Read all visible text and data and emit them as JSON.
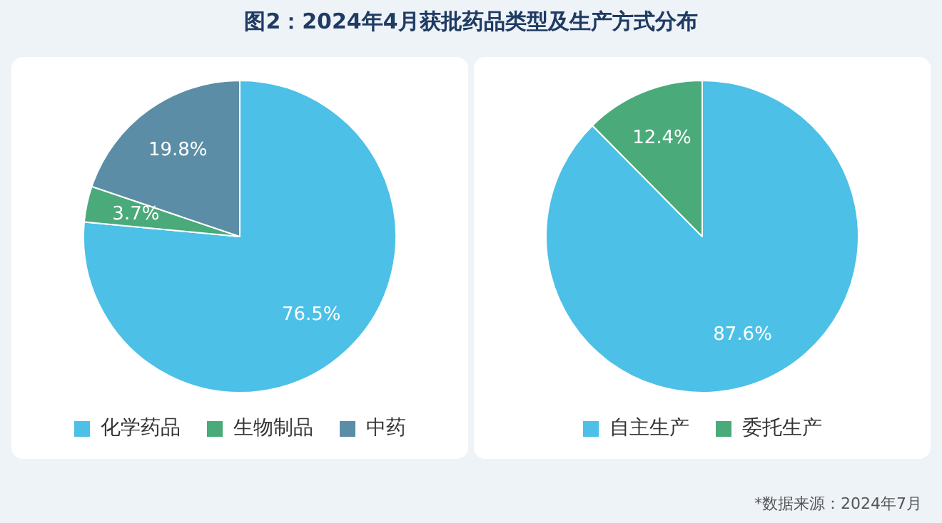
{
  "chart_data": [
    {
      "type": "pie",
      "title": "图2：2024年4月获批药品类型及生产方式分布",
      "categories": [
        "化学药品",
        "生物制品",
        "中药"
      ],
      "values": [
        76.5,
        3.7,
        19.8
      ],
      "colors": [
        "#4cc0e6",
        "#4aaa7a",
        "#5b8ea6"
      ],
      "value_labels": [
        "76.5%",
        "3.7%",
        "19.8%"
      ],
      "legend": "bottom"
    },
    {
      "type": "pie",
      "categories": [
        "自主生产",
        "委托生产"
      ],
      "values": [
        87.6,
        12.4
      ],
      "colors": [
        "#4cc0e6",
        "#4aaa7a"
      ],
      "value_labels": [
        "87.6%",
        "12.4%"
      ],
      "legend": "bottom",
      "annotations": [
        "*数据来源：2024年7月"
      ]
    }
  ]
}
